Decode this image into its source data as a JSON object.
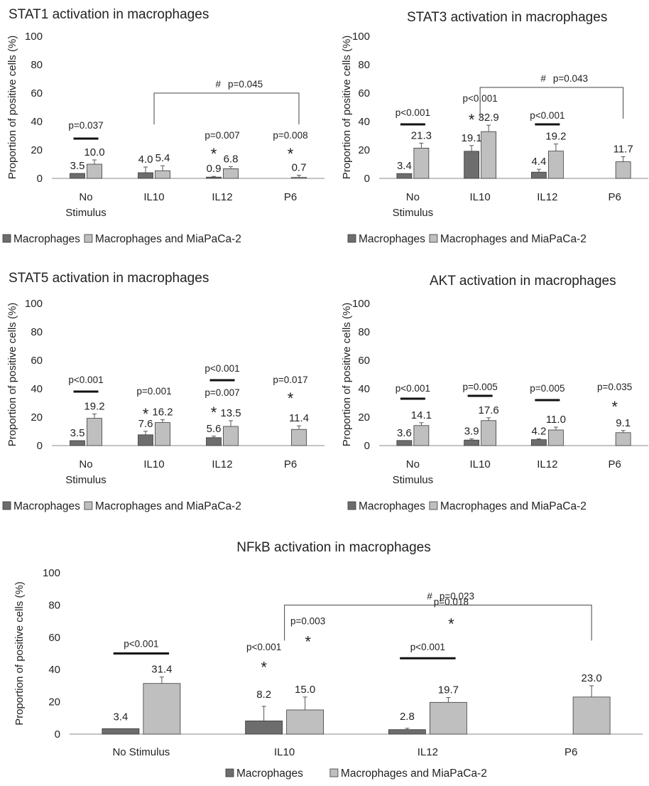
{
  "colors": {
    "macrophages": "#6d6d6d",
    "coculture": "#bfbfbf",
    "bar_stroke": "#3a3a3a",
    "axis": "#888888"
  },
  "chart_data": [
    {
      "type": "bar",
      "title": "STAT1 activation in macrophages",
      "ylabel": "Proportion of positive cells (%)",
      "ylim": [
        0,
        100
      ],
      "yticks": [
        "0",
        "20",
        "40",
        "60",
        "80",
        "100"
      ],
      "categories": [
        [
          "No",
          "Stimulus"
        ],
        [
          "IL10"
        ],
        [
          "IL12"
        ],
        [
          "P6"
        ]
      ],
      "series": [
        {
          "name": "Macrophages",
          "values": [
            3.5,
            4.0,
            0.9,
            null
          ],
          "errors": [
            0,
            4,
            0.5,
            null
          ],
          "labels": [
            "3.5",
            "4.0",
            "0.9",
            ""
          ]
        },
        {
          "name": "Macrophages and MiaPaCa-2",
          "values": [
            10.0,
            5.4,
            6.8,
            0.7
          ],
          "errors": [
            3,
            3.5,
            1.5,
            1.5
          ],
          "labels": [
            "10.0",
            "5.4",
            "6.8",
            "0.7"
          ]
        }
      ],
      "pvalues": [
        {
          "cat": 0,
          "text": "p=0.037",
          "y": 35,
          "line": true,
          "line_y": 28,
          "star": false
        },
        {
          "cat": 2,
          "text": "p=0.007",
          "y": 28,
          "line": false,
          "star": true,
          "star_y": 18
        },
        {
          "cat": 3,
          "text": "p=0.008",
          "y": 28,
          "line": false,
          "star": true,
          "star_y": 18
        }
      ],
      "hash_bracket": {
        "from": 1,
        "to": 3,
        "y": 60,
        "text": "#",
        "p": "p=0.045"
      },
      "legend": [
        "Macrophages",
        "Macrophages and MiaPaCa-2"
      ]
    },
    {
      "type": "bar",
      "title": "STAT3 activation in macrophages",
      "ylabel": "Proportion of positive cells (%)",
      "ylim": [
        0,
        100
      ],
      "yticks": [
        "0",
        "20",
        "40",
        "60",
        "80",
        "100"
      ],
      "categories": [
        [
          "No",
          "Stimulus"
        ],
        [
          "IL10"
        ],
        [
          "IL12"
        ],
        [
          "P6"
        ]
      ],
      "series": [
        {
          "name": "Macrophages",
          "values": [
            3.4,
            19.1,
            4.4,
            null
          ],
          "errors": [
            0,
            4,
            2,
            null
          ],
          "labels": [
            "3.4",
            "19.1",
            "4.4",
            ""
          ]
        },
        {
          "name": "Macrophages and MiaPaCa-2",
          "values": [
            21.3,
            32.9,
            19.2,
            11.7
          ],
          "errors": [
            3.5,
            4.5,
            5,
            3.5
          ],
          "labels": [
            "21.3",
            "32.9",
            "19.2",
            "11.7"
          ]
        }
      ],
      "pvalues": [
        {
          "cat": 0,
          "text": "p<0.001",
          "y": 44,
          "line": true,
          "line_y": 38,
          "star": false
        },
        {
          "cat": 1,
          "text": "p<0.001",
          "y": 54,
          "line": false,
          "star": true,
          "star_y": 42
        },
        {
          "cat": 2,
          "text": "p<0.001",
          "y": 42,
          "line": true,
          "line_y": 38,
          "star": false
        }
      ],
      "hash_bracket": {
        "from": 1,
        "to": 3,
        "y": 64,
        "text": "#",
        "p": "p=0.043"
      },
      "legend": [
        "Macrophages",
        "Macrophages and MiaPaCa-2"
      ]
    },
    {
      "type": "bar",
      "title": "STAT5 activation in macrophages",
      "ylabel": "Proportion of positive cells (%)",
      "ylim": [
        0,
        100
      ],
      "yticks": [
        "0",
        "20",
        "40",
        "60",
        "80",
        "100"
      ],
      "categories": [
        [
          "No",
          "Stimulus"
        ],
        [
          "IL10"
        ],
        [
          "IL12"
        ],
        [
          "P6"
        ]
      ],
      "series": [
        {
          "name": "Macrophages",
          "values": [
            3.5,
            7.6,
            5.6,
            null
          ],
          "errors": [
            0,
            2.5,
            1,
            null
          ],
          "labels": [
            "3.5",
            "7.6",
            "5.6",
            ""
          ]
        },
        {
          "name": "Macrophages and MiaPaCa-2",
          "values": [
            19.2,
            16.2,
            13.5,
            11.4
          ],
          "errors": [
            3,
            2,
            4,
            2.5
          ],
          "labels": [
            "19.2",
            "16.2",
            "13.5",
            "11.4"
          ]
        }
      ],
      "pvalues": [
        {
          "cat": 0,
          "text": "p<0.001",
          "y": 44,
          "line": true,
          "line_y": 38,
          "star": false
        },
        {
          "cat": 1,
          "text": "p=0.001",
          "y": 36,
          "line": false,
          "star": true,
          "star_y": 23
        },
        {
          "cat": 2,
          "text": "p<0.001",
          "y": 52,
          "line": true,
          "line_y": 46,
          "star": false
        },
        {
          "cat": 2,
          "text": "p=0.007",
          "y": 35,
          "line": false,
          "star": true,
          "star_y": 24
        },
        {
          "cat": 3,
          "text": "p=0.017",
          "y": 44,
          "line": false,
          "star": true,
          "star_y": 34
        }
      ],
      "legend": [
        "Macrophages",
        "Macrophages and MiaPaCa-2"
      ]
    },
    {
      "type": "bar",
      "title": "AKT activation in macrophages",
      "ylabel": "Proportion of positive cells (%)",
      "ylim": [
        0,
        100
      ],
      "yticks": [
        "0",
        "20",
        "40",
        "60",
        "80",
        "100"
      ],
      "categories": [
        [
          "No",
          "Stimulus"
        ],
        [
          "IL10"
        ],
        [
          "IL12"
        ],
        [
          "P6"
        ]
      ],
      "series": [
        {
          "name": "Macrophages",
          "values": [
            3.6,
            3.9,
            4.2,
            null
          ],
          "errors": [
            0,
            0.8,
            0.5,
            null
          ],
          "labels": [
            "3.6",
            "3.9",
            "4.2",
            ""
          ]
        },
        {
          "name": "Macrophages and MiaPaCa-2",
          "values": [
            14.1,
            17.6,
            11.0,
            9.1
          ],
          "errors": [
            2,
            2,
            2,
            1.5
          ],
          "labels": [
            "14.1",
            "17.6",
            "11.0",
            "9.1"
          ]
        }
      ],
      "pvalues": [
        {
          "cat": 0,
          "text": "p<0.001",
          "y": 38,
          "line": true,
          "line_y": 33,
          "star": false
        },
        {
          "cat": 1,
          "text": "p=0.005",
          "y": 39,
          "line": true,
          "line_y": 35,
          "star": false
        },
        {
          "cat": 2,
          "text": "p=0.005",
          "y": 38,
          "line": true,
          "line_y": 32,
          "star": false
        },
        {
          "cat": 3,
          "text": "p=0.035",
          "y": 39,
          "line": false,
          "star": true,
          "star_y": 28
        }
      ],
      "legend": [
        "Macrophages",
        "Macrophages and MiaPaCa-2"
      ]
    },
    {
      "type": "bar",
      "title": "NFkB activation in macrophages",
      "ylabel": "Proportion of positive cells (%)",
      "ylim": [
        0,
        100
      ],
      "yticks": [
        "0",
        "20",
        "40",
        "60",
        "80",
        "100"
      ],
      "categories": [
        [
          "No Stimulus"
        ],
        [
          "IL10"
        ],
        [
          "IL12"
        ],
        [
          "P6"
        ]
      ],
      "series": [
        {
          "name": "Macrophages",
          "values": [
            3.4,
            8.2,
            2.8,
            null
          ],
          "errors": [
            0,
            9,
            0.8,
            null
          ],
          "labels": [
            "3.4",
            "8.2",
            "2.8",
            ""
          ]
        },
        {
          "name": "Macrophages and MiaPaCa-2",
          "values": [
            31.4,
            15.0,
            19.7,
            23.0
          ],
          "errors": [
            4,
            8,
            3,
            7
          ],
          "labels": [
            "31.4",
            "15.0",
            "19.7",
            "23.0"
          ]
        }
      ],
      "pvalues": [
        {
          "cat": 0,
          "text": "p<0.001",
          "y": 54,
          "line": true,
          "line_y": 50,
          "star": false,
          "pos": "center"
        },
        {
          "cat": 1,
          "text": "p<0.001",
          "y": 52,
          "line": false,
          "star": true,
          "star_y": 42,
          "pos": "left"
        },
        {
          "cat": 1,
          "text": "p=0.003",
          "y": 68,
          "line": false,
          "star": true,
          "star_y": 58,
          "pos": "right"
        },
        {
          "cat": 2,
          "text": "p<0.001",
          "y": 52,
          "line": true,
          "line_y": 47,
          "star": false,
          "pos": "center"
        },
        {
          "cat": 2,
          "text": "p=0.018",
          "y": 80,
          "line": false,
          "star": true,
          "star_y": 69,
          "pos": "right"
        }
      ],
      "hash_bracket": {
        "from": 1,
        "to": 3,
        "y": 80,
        "text": "#",
        "p": "p=0.023"
      },
      "legend": [
        "Macrophages",
        "Macrophages and MiaPaCa-2"
      ]
    }
  ]
}
